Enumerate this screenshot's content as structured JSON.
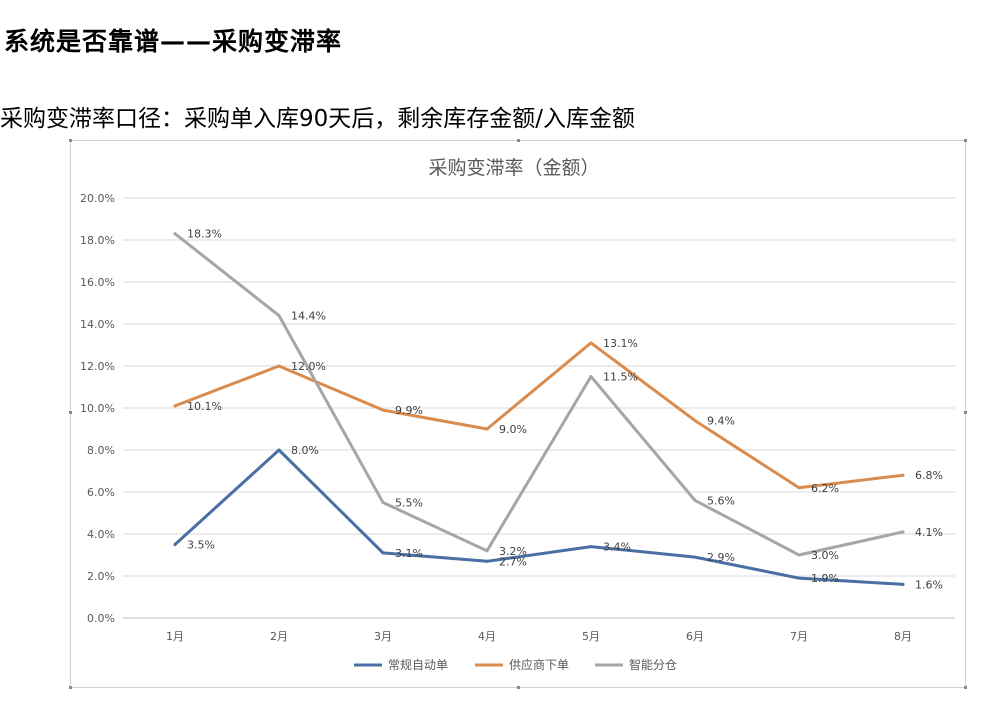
{
  "page": {
    "heading": "系统是否靠谱——采购变滞率",
    "subheading": "采购变滞率口径：采购单入库90天后，剩余库存金额/入库金额"
  },
  "chart_data": {
    "type": "line",
    "title": "采购变滞率（金额）",
    "categories": [
      "1月",
      "2月",
      "3月",
      "4月",
      "5月",
      "6月",
      "7月",
      "8月"
    ],
    "ylim": [
      0,
      20
    ],
    "ytick_labels": [
      "0.0%",
      "2.0%",
      "4.0%",
      "6.0%",
      "8.0%",
      "10.0%",
      "12.0%",
      "14.0%",
      "16.0%",
      "18.0%",
      "20.0%"
    ],
    "grid": true,
    "legend_position": "bottom",
    "series": [
      {
        "name": "常规自动单",
        "color": "#4a6fa5",
        "values": [
          3.5,
          8.0,
          3.1,
          2.7,
          3.4,
          2.9,
          1.9,
          1.6
        ],
        "labels": [
          "3.5%",
          "8.0%",
          "3.1%",
          "2.7%",
          "3.4%",
          "2.9%",
          "1.9%",
          "1.6%"
        ]
      },
      {
        "name": "供应商下单",
        "color": "#d98c4e",
        "values": [
          10.1,
          12.0,
          9.9,
          9.0,
          13.1,
          9.4,
          6.2,
          6.8
        ],
        "labels": [
          "10.1%",
          "12.0%",
          "9.9%",
          "9.0%",
          "13.1%",
          "9.4%",
          "6.2%",
          "6.8%"
        ]
      },
      {
        "name": "智能分仓",
        "color": "#a6a6a6",
        "values": [
          18.3,
          14.4,
          5.5,
          3.2,
          11.5,
          5.6,
          3.0,
          4.1
        ],
        "labels": [
          "18.3%",
          "14.4%",
          "5.5%",
          "3.2%",
          "11.5%",
          "5.6%",
          "3.0%",
          "4.1%"
        ]
      }
    ]
  }
}
